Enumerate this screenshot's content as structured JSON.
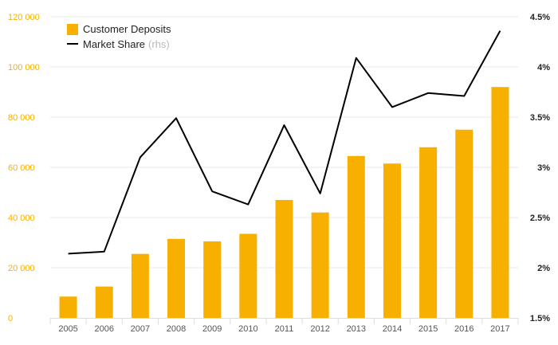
{
  "chart_data": {
    "type": "bar",
    "categories": [
      "2005",
      "2006",
      "2007",
      "2008",
      "2009",
      "2010",
      "2011",
      "2012",
      "2013",
      "2014",
      "2015",
      "2016",
      "2017"
    ],
    "series": [
      {
        "name": "Customer Deposits",
        "type": "bar",
        "axis": "left",
        "color": "#f7b000",
        "values": [
          8500,
          12500,
          25500,
          31500,
          30500,
          33500,
          47000,
          42000,
          64500,
          61500,
          68000,
          75000,
          92000
        ]
      },
      {
        "name": "Market Share",
        "name_suffix": "(rhs)",
        "type": "line",
        "axis": "right",
        "color": "#000000",
        "values": [
          2.14,
          2.16,
          3.1,
          3.49,
          2.76,
          2.63,
          3.42,
          2.74,
          4.09,
          3.6,
          3.74,
          3.71,
          4.36
        ]
      }
    ],
    "left_axis": {
      "ylim": [
        0,
        120000
      ],
      "ticks": [
        0,
        20000,
        40000,
        60000,
        80000,
        100000,
        120000
      ],
      "tick_labels": [
        "0",
        "20 000",
        "40 000",
        "60 000",
        "80 000",
        "100 000",
        "120 000"
      ],
      "color": "#f7b000"
    },
    "right_axis": {
      "ylim": [
        1.5,
        4.5
      ],
      "ticks": [
        1.5,
        2,
        2.5,
        3,
        3.5,
        4,
        4.5
      ],
      "tick_labels": [
        "1.5%",
        "2%",
        "2.5%",
        "3%",
        "3.5%",
        "4%",
        "4.5%"
      ],
      "color": "#222222"
    },
    "title": "",
    "xlabel": "",
    "ylabel": "",
    "grid": true,
    "legend": "top-left"
  }
}
